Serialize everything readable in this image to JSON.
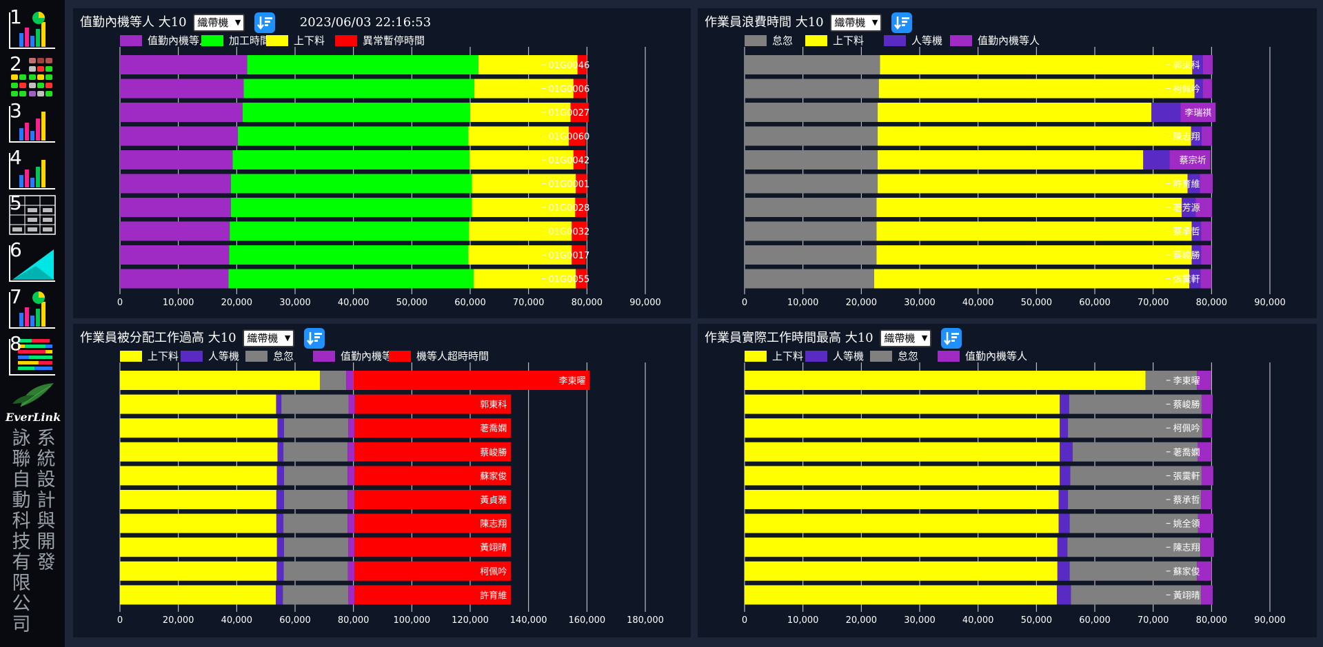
{
  "sidebar": {
    "nav": [
      {
        "label": "1",
        "icon": "bar-pie-chart-icon"
      },
      {
        "label": "2",
        "icon": "color-grid-icon"
      },
      {
        "label": "3",
        "icon": "bar-chart-icon"
      },
      {
        "label": "4",
        "icon": "bar-chart-icon"
      },
      {
        "label": "5",
        "icon": "table-icon"
      },
      {
        "label": "6",
        "icon": "area-chart-icon"
      },
      {
        "label": "7",
        "icon": "bar-pie-chart-icon"
      },
      {
        "label": "8",
        "icon": "stacked-bars-icon"
      }
    ],
    "brand": "EverLink",
    "company_col1": "詠聯自動科技有限公司",
    "company_col2": "系統設計與開發"
  },
  "colors": {
    "purple": "#a02bc4",
    "green": "#00ff00",
    "yellow": "#ffff00",
    "red": "#ff0000",
    "gray": "#808080",
    "indigo": "#5a2bc4",
    "panel_bg": "#0f1726",
    "page_bg": "#1c2638"
  },
  "panels": [
    {
      "title": "值勤內機等人 大10",
      "select": "織帶機",
      "timestamp": "2023/06/03 22:16:53",
      "chart_data": {
        "type": "bar",
        "orientation": "horizontal",
        "stacked": true,
        "legend": [
          "值勤內機等人",
          "加工時間",
          "上下料",
          "異常暫停時間"
        ],
        "legend_colors": [
          "#a02bc4",
          "#00ff00",
          "#ffff00",
          "#ff0000"
        ],
        "categories": [
          "01G0046",
          "01G0006",
          "01G0027",
          "01G0060",
          "01G0042",
          "01G0001",
          "01G0028",
          "01G0032",
          "01G0017",
          "01G0055"
        ],
        "series": [
          {
            "name": "值勤內機等人",
            "color": "#a02bc4",
            "values": [
              21800,
              21200,
              21000,
              20200,
              19300,
              19000,
              19000,
              18800,
              18700,
              18600
            ]
          },
          {
            "name": "加工時間",
            "color": "#00ff00",
            "values": [
              39600,
              39500,
              39000,
              39500,
              40600,
              41300,
              41300,
              41000,
              41000,
              42000
            ]
          },
          {
            "name": "上下料",
            "color": "#ffff00",
            "values": [
              17000,
              17000,
              17200,
              17200,
              17800,
              17800,
              17700,
              17600,
              17700,
              17500
            ]
          },
          {
            "name": "異常暫停時間",
            "color": "#ff0000",
            "values": [
              1600,
              2300,
              3100,
              2900,
              2100,
              1900,
              2000,
              2600,
              2400,
              1900
            ]
          }
        ],
        "xlim": [
          0,
          90000
        ],
        "xticks": [
          "0",
          "10,000",
          "20,000",
          "30,000",
          "40,000",
          "50,000",
          "60,000",
          "70,000",
          "80,000",
          "90,000"
        ],
        "labels_position": "right"
      }
    },
    {
      "title": "作業員浪費時間 大10",
      "select": "織帶機",
      "chart_data": {
        "type": "bar",
        "orientation": "horizontal",
        "stacked": true,
        "legend": [
          "怠忽",
          "上下料",
          "人等機",
          "值勤內機等人"
        ],
        "legend_colors": [
          "#808080",
          "#ffff00",
          "#5a2bc4",
          "#a02bc4"
        ],
        "categories": [
          "郭東科",
          "柯佩吟",
          "李瑞祺",
          "陳志翔",
          "蔡宗圻",
          "許育維",
          "荖芳源",
          "蔡承哲",
          "蔡峻勝",
          "張霙軒"
        ],
        "series": [
          {
            "name": "怠忽",
            "color": "#808080",
            "values": [
              23200,
              23000,
              22800,
              22800,
              22800,
              22800,
              22600,
              22600,
              22600,
              22200
            ]
          },
          {
            "name": "上下料",
            "color": "#ffff00",
            "values": [
              53500,
              54100,
              46900,
              53700,
              45500,
              53100,
              52300,
              54000,
              54000,
              54000
            ]
          },
          {
            "name": "人等機",
            "color": "#5a2bc4",
            "values": [
              1800,
              1400,
              5000,
              1800,
              4500,
              2100,
              2400,
              1600,
              1600,
              1900
            ]
          },
          {
            "name": "值勤內機等人",
            "color": "#a02bc4",
            "values": [
              1700,
              1600,
              6000,
              1800,
              7000,
              2200,
              2800,
              1800,
              1800,
              1900
            ]
          }
        ],
        "xlim": [
          0,
          90000
        ],
        "xticks": [
          "0",
          "10,000",
          "20,000",
          "30,000",
          "40,000",
          "50,000",
          "60,000",
          "70,000",
          "80,000",
          "90,000"
        ],
        "labels_position": "right"
      }
    },
    {
      "title": "作業員被分配工作過高 大10",
      "select": "織帶機",
      "chart_data": {
        "type": "bar",
        "orientation": "horizontal",
        "stacked": true,
        "legend": [
          "上下料",
          "人等機",
          "怠忽",
          "值勤內機等人",
          "機等人超時時間"
        ],
        "legend_colors": [
          "#ffff00",
          "#5a2bc4",
          "#808080",
          "#a02bc4",
          "#ff0000"
        ],
        "categories": [
          "李東曜",
          "郭東科",
          "荖喬嫻",
          "蔡峻勝",
          "蘇家俊",
          "黃貞雅",
          "陳志翔",
          "黃翊晴",
          "柯佩吟",
          "許育維"
        ],
        "series": [
          {
            "name": "上下料",
            "color": "#ffff00",
            "values": [
              68500,
              53500,
              54000,
              54000,
              53800,
              53600,
              53600,
              53800,
              53700,
              53400
            ]
          },
          {
            "name": "人等機",
            "color": "#5a2bc4",
            "values": [
              0,
              1800,
              2200,
              2000,
              2400,
              2600,
              2400,
              2400,
              2400,
              2400
            ]
          },
          {
            "name": "怠忽",
            "color": "#808080",
            "values": [
              9000,
              23000,
              22000,
              22000,
              21800,
              21800,
              22000,
              22000,
              22000,
              22400
            ]
          },
          {
            "name": "值勤內機等人",
            "color": "#a02bc4",
            "values": [
              2500,
              2200,
              2200,
              2400,
              2400,
              2400,
              2400,
              2200,
              2300,
              2200
            ]
          },
          {
            "name": "機等人超時時間",
            "color": "#ff0000",
            "values": [
              81000,
              53500,
              53600,
              53600,
              53600,
              53600,
              53600,
              53600,
              53600,
              53600
            ]
          }
        ],
        "xlim": [
          0,
          180000
        ],
        "xticks": [
          "0",
          "20,000",
          "40,000",
          "60,000",
          "80,000",
          "100,000",
          "120,000",
          "140,000",
          "160,000",
          "180,000"
        ],
        "labels_position": "inside"
      }
    },
    {
      "title": "作業員實際工作時間最高 大10",
      "select": "織帶機",
      "chart_data": {
        "type": "bar",
        "orientation": "horizontal",
        "stacked": true,
        "legend": [
          "上下料",
          "人等機",
          "怠忽",
          "值勤內機等人"
        ],
        "legend_colors": [
          "#ffff00",
          "#5a2bc4",
          "#808080",
          "#a02bc4"
        ],
        "categories": [
          "李東曜",
          "蔡峻勝",
          "柯佩吟",
          "荖喬嫻",
          "張霙軒",
          "蔡承哲",
          "姚全領",
          "陳志翔",
          "蘇家俊",
          "黃翊晴"
        ],
        "series": [
          {
            "name": "上下料",
            "color": "#ffff00",
            "values": [
              68700,
              54000,
              54000,
              54000,
              54000,
              53800,
              53800,
              53600,
              53600,
              53500
            ]
          },
          {
            "name": "人等機",
            "color": "#5a2bc4",
            "values": [
              0,
              1600,
              1400,
              2200,
              1800,
              1600,
              1900,
              1700,
              2100,
              2400
            ]
          },
          {
            "name": "怠忽",
            "color": "#808080",
            "values": [
              8800,
              22700,
              23000,
              21400,
              22500,
              22800,
              22000,
              22800,
              21800,
              22300
            ]
          },
          {
            "name": "值勤內機等人",
            "color": "#a02bc4",
            "values": [
              2400,
              1900,
              1700,
              2400,
              2000,
              1900,
              2600,
              2300,
              2500,
              2000
            ]
          }
        ],
        "xlim": [
          0,
          90000
        ],
        "xticks": [
          "0",
          "10,000",
          "20,000",
          "30,000",
          "40,000",
          "50,000",
          "60,000",
          "70,000",
          "80,000",
          "90,000"
        ],
        "labels_position": "right"
      }
    }
  ]
}
